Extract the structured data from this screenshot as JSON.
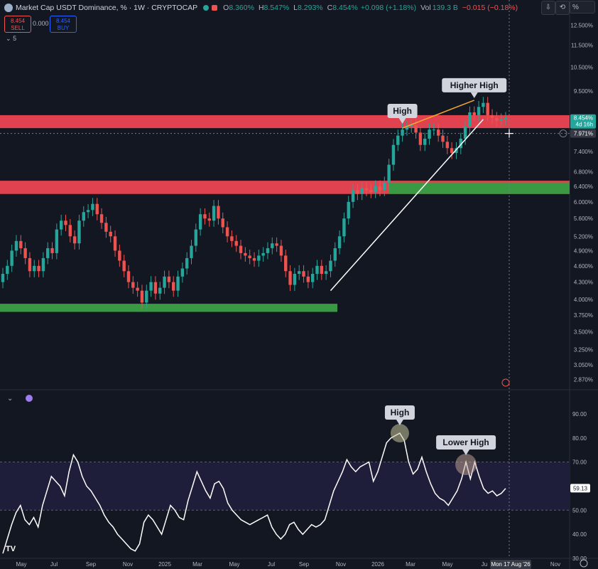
{
  "header": {
    "symbol": "Market Cap USDT Dominance, % · 1W · CRYPTOCAP",
    "open_label": "O",
    "open": "8.360%",
    "high_label": "H",
    "high": "8.547%",
    "low_label": "L",
    "low": "8.293%",
    "close_label": "C",
    "close": "8.454%",
    "change": "+0.098 (+1.18%)",
    "vol_label": "Vol",
    "vol": "139.3 B",
    "vol_change": "−0.015 (−0.18%)"
  },
  "trade": {
    "sell_price": "8.454",
    "sell_label": "SELL",
    "spread": "0.000",
    "buy_price": "8.454",
    "buy_label": "BUY"
  },
  "indicator_count": "5",
  "toolbar": {
    "scale_label": "%"
  },
  "colors": {
    "bg": "#131722",
    "up": "#26a69a",
    "down": "#ef5350",
    "red_zone": "#e0434f",
    "green_zone": "#3a9a44",
    "trend": "#ffffff",
    "orange": "#f7a530",
    "rsi_band": "#1f1e3a"
  },
  "chart_data": [
    {
      "type": "candlestick",
      "title": "Market Cap USDT Dominance, % · 1W · CRYPTOCAP",
      "y_scale": "log",
      "ylim": [
        2.75,
        13.0
      ],
      "y_ticks": [
        "12.500%",
        "11.500%",
        "10.500%",
        "9.500%",
        "7.400%",
        "6.800%",
        "6.400%",
        "6.000%",
        "5.600%",
        "5.200%",
        "4.900%",
        "4.600%",
        "4.300%",
        "4.000%",
        "3.750%",
        "3.500%",
        "3.250%",
        "3.050%",
        "2.870%"
      ],
      "last_price": "8.454%",
      "countdown": "4d 16h",
      "crosshair_price": "7.971%",
      "x_ticks": [
        "May",
        "Jul",
        "Sep",
        "Nov",
        "2025",
        "Mar",
        "May",
        "Jul",
        "Sep",
        "Nov",
        "2026",
        "Mar",
        "May",
        "Ju"
      ],
      "crosshair_date": "Mon 17 Aug '26",
      "annotations": [
        "High",
        "Higher High"
      ],
      "candles_close": [
        4.45,
        4.6,
        4.9,
        5.1,
        4.95,
        4.75,
        4.5,
        4.6,
        4.5,
        4.75,
        4.95,
        4.85,
        5.35,
        5.55,
        5.45,
        5.2,
        5.05,
        5.55,
        5.75,
        5.8,
        5.95,
        5.7,
        5.5,
        5.3,
        5.2,
        4.9,
        4.7,
        4.5,
        4.3,
        4.2,
        4.15,
        3.95,
        4.15,
        4.3,
        4.1,
        4.2,
        4.4,
        4.3,
        4.15,
        4.4,
        4.55,
        4.75,
        5.0,
        5.35,
        5.7,
        5.6,
        5.55,
        5.9,
        5.6,
        5.4,
        5.2,
        5.1,
        5.0,
        4.85,
        4.8,
        4.75,
        4.7,
        4.8,
        4.85,
        4.95,
        5.05,
        5.0,
        4.8,
        4.5,
        4.25,
        4.45,
        4.5,
        4.4,
        4.3,
        4.45,
        4.6,
        4.45,
        4.5,
        4.7,
        4.95,
        5.2,
        5.6,
        6.0,
        6.3,
        6.2,
        6.35,
        6.3,
        6.25,
        6.4,
        6.3,
        6.5,
        7.0,
        7.6,
        7.9,
        8.1,
        8.2,
        8.25,
        8.0,
        7.6,
        7.8,
        8.1,
        8.1,
        7.9,
        7.7,
        7.5,
        7.35,
        7.5,
        7.8,
        8.2,
        8.7,
        8.6,
        8.9,
        9.05,
        8.6,
        8.5,
        8.4,
        8.45,
        8.5
      ],
      "zones": [
        {
          "kind": "resistance",
          "from": 8.15,
          "to": 8.6
        },
        {
          "kind": "resistance",
          "from": 6.2,
          "to": 6.55
        },
        {
          "kind": "support",
          "from": 6.2,
          "to": 6.5
        },
        {
          "kind": "support",
          "from": 3.8,
          "to": 3.93
        }
      ]
    },
    {
      "type": "line",
      "series": [
        {
          "name": "",
          "values": [
            32,
            38,
            44,
            49,
            52,
            46,
            44,
            47,
            43,
            52,
            58,
            64,
            62,
            60,
            56,
            66,
            73,
            70,
            64,
            60,
            58,
            55,
            52,
            48,
            45,
            43,
            40,
            38,
            36,
            34,
            33,
            36,
            45,
            48,
            46,
            43,
            40,
            46,
            52,
            50,
            47,
            46,
            54,
            60,
            66,
            62,
            58,
            55,
            61,
            62,
            59,
            53,
            50,
            48,
            46,
            45,
            44,
            45,
            46,
            47,
            48,
            43,
            40,
            38,
            40,
            44,
            45,
            42,
            40,
            42,
            44,
            43,
            44,
            46,
            52,
            58,
            62,
            66,
            71,
            68,
            66,
            68,
            69,
            70,
            62,
            66,
            72,
            78,
            80,
            81,
            82,
            79,
            70,
            65,
            67,
            72,
            66,
            61,
            57,
            55,
            54,
            52,
            55,
            58,
            63,
            70,
            63,
            70,
            64,
            59,
            57,
            58,
            56,
            57,
            59
          ]
        }
      ],
      "ylim": [
        30,
        95
      ],
      "y_ticks": [
        "90.00",
        "80.00",
        "70.00",
        "60.00",
        "50.00",
        "40.00",
        "30.00"
      ],
      "band": [
        50,
        70
      ],
      "last_value": "59.13",
      "annotations": [
        "High",
        "Lower High"
      ]
    }
  ]
}
